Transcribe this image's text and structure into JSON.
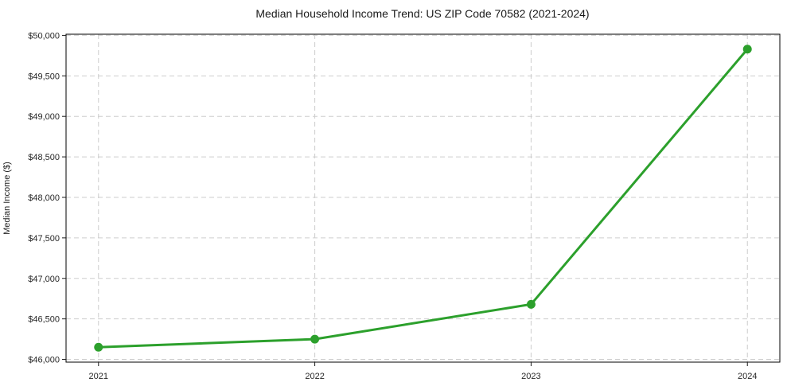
{
  "figure": {
    "background": "#ffffff"
  },
  "chart_data": {
    "type": "line",
    "title": "Median Household Income Trend: US ZIP Code 70582 (2021-2024)",
    "xlabel": "",
    "ylabel": "Median Income ($)",
    "x": [
      2021,
      2022,
      2023,
      2024
    ],
    "xtick_labels": [
      "2021",
      "2022",
      "2023",
      "2024"
    ],
    "values": [
      46150,
      46250,
      46680,
      49830
    ],
    "ylim": [
      45966,
      50014
    ],
    "yticks": [
      46000,
      46500,
      47000,
      47500,
      48000,
      48500,
      49000,
      49500,
      50000
    ],
    "ytick_labels": [
      "$46,000",
      "$46,500",
      "$47,000",
      "$47,500",
      "$48,000",
      "$48,500",
      "$49,000",
      "$49,500",
      "$50,000"
    ],
    "grid": true,
    "grid_style": "dashed",
    "legend": "none",
    "line_color": "#2ca02c",
    "marker": "circle"
  }
}
